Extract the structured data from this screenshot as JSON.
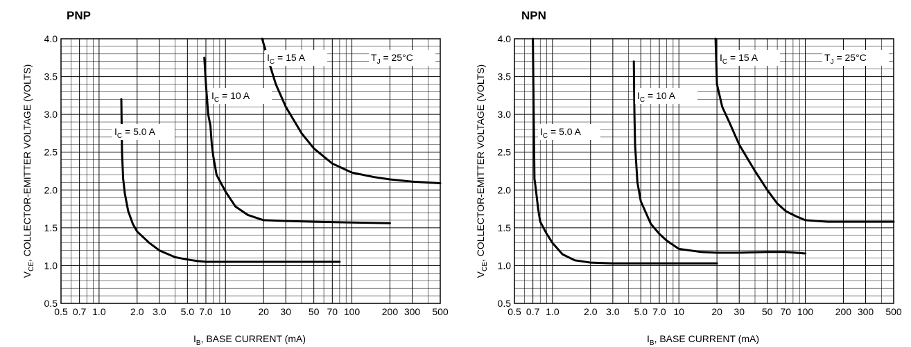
{
  "chart_data": [
    {
      "type": "line",
      "title": "PNP",
      "xlabel": {
        "main": "I",
        "sub": "B",
        "rest": ", BASE CURRENT (mA)"
      },
      "ylabel": {
        "main": "V",
        "sub": "CE",
        "rest": ", COLLECTOR-EMITTER VOLTAGE (VOLTS)"
      },
      "xscale": "log",
      "xlim": [
        0.5,
        500
      ],
      "ylim": [
        0.5,
        4.0
      ],
      "grid": true,
      "xticks": [
        0.5,
        0.7,
        1.0,
        2.0,
        3.0,
        5.0,
        7.0,
        10,
        20,
        30,
        50,
        70,
        100,
        200,
        300,
        500
      ],
      "xtick_labels": [
        "0.5",
        "0.7",
        "1.0",
        "2.0",
        "3.0",
        "5.0",
        "7.0",
        "10",
        "20",
        "30",
        "50",
        "70",
        "100",
        "200",
        "300",
        "500"
      ],
      "yticks": [
        0.5,
        1.0,
        1.5,
        2.0,
        2.5,
        3.0,
        3.5,
        4.0
      ],
      "ytick_labels": [
        "0.5",
        "1.0",
        "1.5",
        "2.0",
        "2.5",
        "3.0",
        "3.5",
        "4.0"
      ],
      "annotation": {
        "main": "T",
        "sub": "J",
        "rest": " = 25°C"
      },
      "series": [
        {
          "label_main": "I",
          "label_sub": "C",
          "label_rest": " = 5.0 A",
          "x": [
            1.5,
            1.52,
            1.55,
            1.6,
            1.7,
            1.85,
            2.0,
            2.5,
            3.0,
            4.0,
            5.0,
            6.0,
            7.0,
            10,
            20,
            50,
            80
          ],
          "y": [
            3.2,
            2.5,
            2.15,
            1.95,
            1.72,
            1.55,
            1.45,
            1.3,
            1.2,
            1.11,
            1.08,
            1.06,
            1.05,
            1.05,
            1.05,
            1.05,
            1.05
          ]
        },
        {
          "label_main": "I",
          "label_sub": "C",
          "label_rest": " = 10 A",
          "x": [
            6.8,
            7.0,
            7.3,
            7.6,
            7.8,
            8.0,
            8.5,
            10,
            12,
            15,
            20,
            30,
            50,
            100,
            200
          ],
          "y": [
            3.75,
            3.4,
            3.0,
            2.85,
            2.6,
            2.45,
            2.2,
            1.98,
            1.78,
            1.67,
            1.6,
            1.59,
            1.58,
            1.57,
            1.56
          ]
        },
        {
          "label_main": "I",
          "label_sub": "C",
          "label_rest": " = 15 A",
          "x": [
            19.5,
            22,
            25,
            30,
            40,
            50,
            70,
            100,
            150,
            200,
            300,
            500
          ],
          "y": [
            4.0,
            3.7,
            3.4,
            3.1,
            2.75,
            2.55,
            2.35,
            2.23,
            2.17,
            2.14,
            2.11,
            2.09
          ]
        }
      ]
    },
    {
      "type": "line",
      "title": "NPN",
      "xlabel": {
        "main": "I",
        "sub": "B",
        "rest": ", BASE CURRENT (mA)"
      },
      "ylabel": {
        "main": "V",
        "sub": "CE",
        "rest": ", COLLECTOR-EMITTER VOLTAGE (VOLTS)"
      },
      "xscale": "log",
      "xlim": [
        0.5,
        500
      ],
      "ylim": [
        0.5,
        4.0
      ],
      "grid": true,
      "xticks": [
        0.5,
        0.7,
        1.0,
        2.0,
        3.0,
        5.0,
        7.0,
        10,
        20,
        30,
        50,
        70,
        100,
        200,
        300,
        500
      ],
      "xtick_labels": [
        "0.5",
        "0.7",
        "1.0",
        "2.0",
        "3.0",
        "5.0",
        "7.0",
        "10",
        "20",
        "30",
        "50",
        "70",
        "100",
        "200",
        "300",
        "500"
      ],
      "yticks": [
        0.5,
        1.0,
        1.5,
        2.0,
        2.5,
        3.0,
        3.5,
        4.0
      ],
      "ytick_labels": [
        "0.5",
        "1.0",
        "1.5",
        "2.0",
        "2.5",
        "3.0",
        "3.5",
        "4.0"
      ],
      "annotation": {
        "main": "T",
        "sub": "J",
        "rest": " = 25°C"
      },
      "series": [
        {
          "label_main": "I",
          "label_sub": "C",
          "label_rest": " = 5.0 A",
          "x": [
            0.7,
            0.71,
            0.72,
            0.74,
            0.77,
            0.8,
            0.9,
            1.0,
            1.2,
            1.5,
            2.0,
            3.0,
            5.0,
            10,
            20
          ],
          "y": [
            4.0,
            3.0,
            2.15,
            2.0,
            1.75,
            1.58,
            1.42,
            1.3,
            1.15,
            1.07,
            1.04,
            1.03,
            1.03,
            1.03,
            1.03
          ]
        },
        {
          "label_main": "I",
          "label_sub": "C",
          "label_rest": " = 10 A",
          "x": [
            4.4,
            4.45,
            4.5,
            4.7,
            5.0,
            6.0,
            7.0,
            8.0,
            10,
            15,
            20,
            30,
            50,
            70,
            100
          ],
          "y": [
            3.7,
            3.0,
            2.6,
            2.1,
            1.85,
            1.55,
            1.42,
            1.33,
            1.22,
            1.18,
            1.17,
            1.17,
            1.18,
            1.18,
            1.16
          ]
        },
        {
          "label_main": "I",
          "label_sub": "C",
          "label_rest": " = 15 A",
          "x": [
            19.5,
            20,
            22,
            25,
            30,
            40,
            50,
            60,
            70,
            85,
            100,
            150,
            200,
            300,
            500
          ],
          "y": [
            4.0,
            3.4,
            3.1,
            2.9,
            2.6,
            2.25,
            2.0,
            1.82,
            1.72,
            1.65,
            1.6,
            1.58,
            1.58,
            1.58,
            1.58
          ]
        }
      ]
    }
  ]
}
